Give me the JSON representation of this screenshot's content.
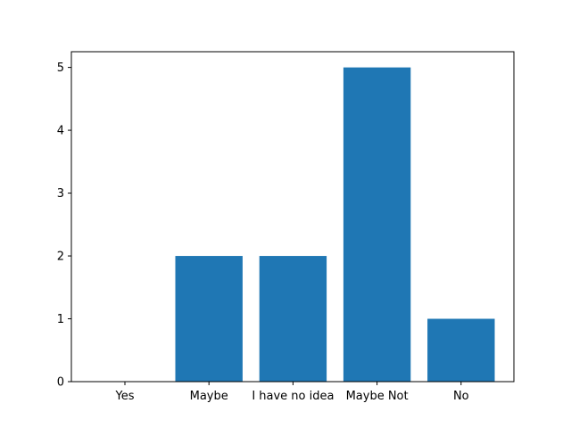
{
  "chart_data": {
    "type": "bar",
    "categories": [
      "Yes",
      "Maybe",
      "I have no idea",
      "Maybe Not",
      "No"
    ],
    "values": [
      0,
      2,
      2,
      5,
      1
    ],
    "title": "",
    "xlabel": "",
    "ylabel": "",
    "ylim": [
      0,
      5.25
    ],
    "yticks": [
      "0",
      "1",
      "2",
      "3",
      "4",
      "5"
    ],
    "grid": false,
    "bar_color": "#1f77b4"
  }
}
